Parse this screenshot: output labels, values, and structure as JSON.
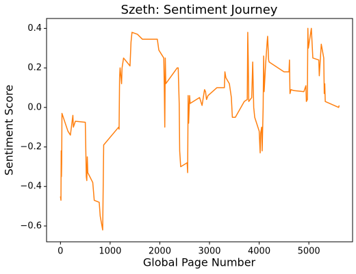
{
  "chart_data": {
    "type": "line",
    "title": "Szeth: Sentiment Journey",
    "xlabel": "Global Page Number",
    "ylabel": "Sentiment Score",
    "color": "#ff7f0e",
    "xlim": [
      -280,
      5880
    ],
    "ylim": [
      -0.68,
      0.45
    ],
    "xticks": [
      0,
      1000,
      2000,
      3000,
      4000,
      5000
    ],
    "yticks": [
      {
        "value": -0.6,
        "label": "−0.6"
      },
      {
        "value": -0.4,
        "label": "−0.4"
      },
      {
        "value": -0.2,
        "label": "−0.2"
      },
      {
        "value": 0,
        "label": "0.0"
      },
      0.2,
      0.4
    ],
    "x": [
      0,
      10,
      15,
      20,
      25,
      30,
      150,
      200,
      250,
      260,
      300,
      500,
      520,
      530,
      540,
      550,
      650,
      680,
      780,
      800,
      850,
      870,
      1170,
      1180,
      1190,
      1200,
      1230,
      1240,
      1270,
      1400,
      1420,
      1440,
      1550,
      1650,
      1950,
      1980,
      2080,
      2090,
      2100,
      2110,
      2120,
      2350,
      2370,
      2390,
      2400,
      2420,
      2550,
      2560,
      2570,
      2580,
      2600,
      2610,
      2800,
      2850,
      2900,
      2920,
      2940,
      2970,
      3150,
      3300,
      3310,
      3330,
      3400,
      3440,
      3460,
      3520,
      3700,
      3760,
      3770,
      3780,
      3790,
      3850,
      3870,
      3890,
      3910,
      4000,
      4020,
      4030,
      4050,
      4060,
      4080,
      4090,
      4100,
      4130,
      4160,
      4170,
      4190,
      4200,
      4500,
      4600,
      4610,
      4620,
      4640,
      4700,
      4900,
      4940,
      4950,
      4970,
      4980,
      4990,
      5050,
      5080,
      5200,
      5210,
      5250,
      5300,
      5310,
      5320,
      5330,
      5600,
      5610
    ],
    "values": [
      -0.45,
      -0.47,
      -0.22,
      -0.35,
      -0.28,
      -0.03,
      -0.12,
      -0.14,
      -0.04,
      -0.1,
      -0.07,
      -0.075,
      -0.35,
      -0.37,
      -0.25,
      -0.33,
      -0.38,
      -0.47,
      -0.48,
      -0.55,
      -0.62,
      -0.19,
      -0.1,
      -0.11,
      0.15,
      0.2,
      0.12,
      0.2,
      0.25,
      0.21,
      0.33,
      0.38,
      0.37,
      0.345,
      0.345,
      0.29,
      0.25,
      0.1,
      -0.1,
      0.25,
      0.12,
      0.2,
      0.2,
      0.02,
      -0.22,
      -0.3,
      -0.28,
      -0.33,
      0.06,
      -0.08,
      0.06,
      0.02,
      0.05,
      0.01,
      0.09,
      0.08,
      0.04,
      0.06,
      0.1,
      0.1,
      0.18,
      0.15,
      0.12,
      0.05,
      -0.05,
      -0.05,
      0.03,
      0.04,
      0.38,
      0.24,
      0.03,
      0.05,
      0.23,
      0.0,
      -0.05,
      -0.12,
      -0.23,
      -0.13,
      -0.1,
      -0.22,
      0.0,
      0.26,
      0.08,
      0.22,
      0.33,
      0.36,
      0.24,
      0.23,
      0.18,
      0.18,
      0.24,
      0.07,
      0.09,
      0.085,
      0.08,
      0.11,
      0.03,
      0.04,
      0.4,
      0.3,
      0.4,
      0.25,
      0.24,
      0.16,
      0.32,
      0.25,
      0.07,
      0.12,
      0.03,
      0.0,
      0.01
    ]
  }
}
